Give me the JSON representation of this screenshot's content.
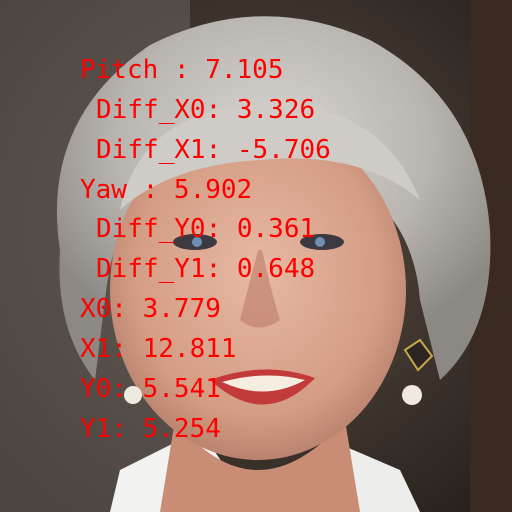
{
  "photo": {
    "subject_icon": "smiling-elderly-woman-portrait-photo"
  },
  "overlay": {
    "color": "#ff0000",
    "lines": [
      "Pitch : 7.105",
      "Diff_X0: 3.326",
      "Diff_X1: -5.706",
      "Yaw : 5.902",
      "Diff_Y0: 0.361",
      "Diff_Y1: 0.648",
      "X0: 3.779",
      "X1: 12.811",
      "Y0: 5.541",
      "Y1: 5.254"
    ]
  }
}
